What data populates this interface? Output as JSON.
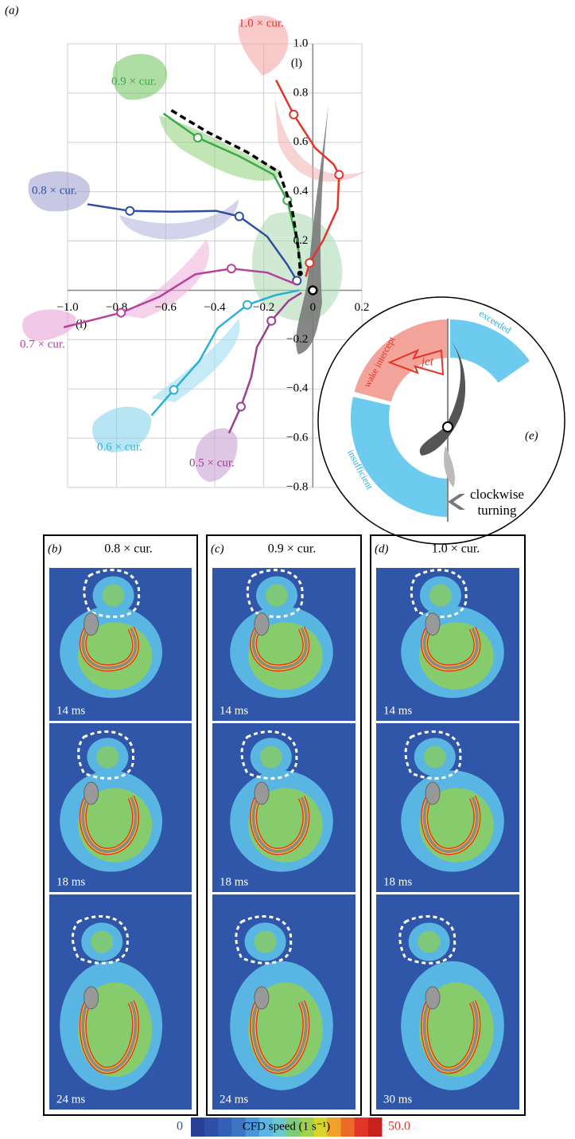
{
  "chart_data": {
    "type": "line",
    "panel_label": "(a)",
    "xlabel": "(l)",
    "ylabel": "(l)",
    "xlim": [
      -1.0,
      0.2
    ],
    "ylim": [
      -0.8,
      1.0
    ],
    "xticks": [
      {
        "value": -1.0,
        "label": "−1.0"
      },
      {
        "value": -0.8,
        "label": "−0.8"
      },
      {
        "value": -0.6,
        "label": "−0.6"
      },
      {
        "value": -0.4,
        "label": "−0.4"
      },
      {
        "value": -0.2,
        "label": "−0.2"
      },
      0,
      0.2
    ],
    "yticks": [
      {
        "value": 1.0,
        "label": "1.0"
      },
      0.8,
      0.6,
      0.4,
      0.2,
      {
        "value": -0.2,
        "label": "−0.2"
      },
      {
        "value": -0.4,
        "label": "−0.4"
      },
      {
        "value": -0.6,
        "label": "−0.6"
      },
      {
        "value": -0.8,
        "label": "−0.8"
      }
    ],
    "grid": true,
    "series": [
      {
        "name": "1.0 × cur.",
        "color": "#e3342a",
        "x": [
          -0.15,
          -0.078,
          0.01,
          0.085,
          0.107,
          0.101,
          0.042,
          -0.013,
          -0.029
        ],
        "values": [
          0.853,
          0.713,
          0.577,
          0.511,
          0.469,
          0.332,
          0.202,
          0.111,
          0.055
        ]
      },
      {
        "name": "0.9 × cur.",
        "color": "#3aaa4a",
        "x": [
          -0.609,
          -0.469,
          -0.3,
          -0.16,
          -0.104,
          -0.065,
          -0.046
        ],
        "values": [
          0.717,
          0.619,
          0.544,
          0.469,
          0.365,
          0.202,
          0.088
        ]
      },
      {
        "name": "0.8 × cur.",
        "color": "#2f4e9e",
        "x": [
          -0.919,
          -0.746,
          -0.577,
          -0.394,
          -0.3,
          -0.186,
          -0.104,
          -0.065
        ],
        "values": [
          0.349,
          0.322,
          0.319,
          0.322,
          0.3,
          0.218,
          0.104,
          0.039
        ]
      },
      {
        "name": "0.7 × cur.",
        "color": "#b8409e",
        "x": [
          -1.016,
          -0.782,
          -0.625,
          -0.479,
          -0.332,
          -0.186,
          -0.065
        ],
        "values": [
          -0.15,
          -0.091,
          -0.026,
          0.065,
          0.088,
          0.072,
          0.023
        ]
      },
      {
        "name": "0.6 × cur.",
        "color": "#2ab0d8",
        "x": [
          -0.658,
          -0.567,
          -0.463,
          -0.388,
          -0.267,
          -0.153,
          -0.055
        ],
        "values": [
          -0.508,
          -0.404,
          -0.287,
          -0.153,
          -0.059,
          -0.02,
          0.0
        ]
      },
      {
        "name": "0.5 × cur.",
        "color": "#9c3f8e",
        "x": [
          -0.342,
          -0.293,
          -0.251,
          -0.228,
          -0.169,
          -0.098,
          -0.046
        ],
        "values": [
          -0.58,
          -0.472,
          -0.352,
          -0.231,
          -0.124,
          -0.042,
          -0.01
        ]
      },
      {
        "color": "#000000",
        "dash": true,
        "x": [
          -0.577,
          -0.43,
          -0.267,
          -0.137,
          -0.085,
          -0.059,
          -0.052
        ],
        "values": [
          0.73,
          0.642,
          0.56,
          0.479,
          0.332,
          0.169,
          0.088
        ]
      }
    ]
  },
  "inset": {
    "label": "(e)",
    "wake": "wake intercept",
    "exceeded": "exceeded",
    "insufficient": "insufficient",
    "jet": "jet",
    "turning": [
      "clockwise",
      "turning"
    ]
  },
  "panels": [
    {
      "label": "(b)",
      "title": "0.8 × cur.",
      "times": [
        "14 ms",
        "18 ms",
        "24 ms"
      ]
    },
    {
      "label": "(c)",
      "title": "0.9 × cur.",
      "times": [
        "14 ms",
        "18 ms",
        "24 ms"
      ]
    },
    {
      "label": "(d)",
      "title": "1.0 × cur.",
      "times": [
        "14 ms",
        "18 ms",
        "30 ms"
      ]
    }
  ],
  "colorbar": {
    "min": "0",
    "label": "CFD speed (1 s⁻¹)",
    "max": "50.0"
  }
}
